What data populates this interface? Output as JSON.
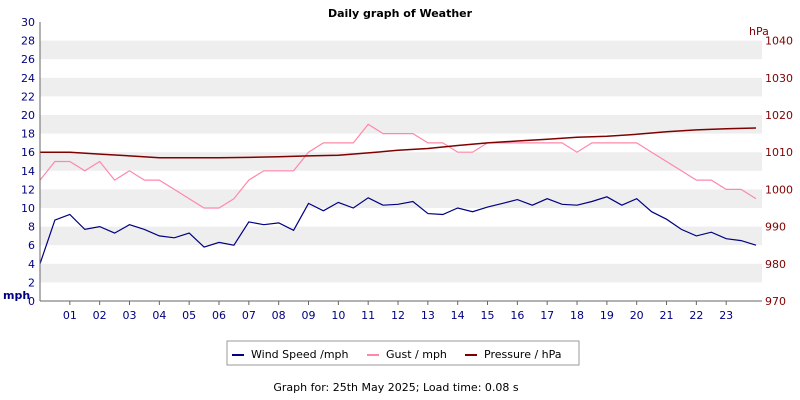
{
  "chart_data": {
    "type": "line",
    "title": "Daily graph of Weather",
    "left_axis": {
      "label": "mph",
      "ylim": [
        0,
        30
      ],
      "ticks": [
        0,
        2,
        4,
        6,
        8,
        10,
        12,
        14,
        16,
        18,
        20,
        22,
        24,
        26,
        28,
        30
      ]
    },
    "right_axis": {
      "label": "hPa",
      "ylim": [
        970,
        1045
      ],
      "ticks": [
        970,
        980,
        990,
        1000,
        1010,
        1020,
        1030,
        1040
      ]
    },
    "x_axis": {
      "unit": "hour",
      "xlim": [
        0,
        24.2
      ],
      "tick_labels": [
        "01",
        "02",
        "03",
        "04",
        "05",
        "06",
        "07",
        "08",
        "09",
        "10",
        "11",
        "12",
        "13",
        "14",
        "15",
        "16",
        "17",
        "18",
        "19",
        "20",
        "21",
        "22",
        "23"
      ]
    },
    "grid": "horizontal alternating bands",
    "legend_placement": "bottom-center",
    "series": [
      {
        "name": "Wind Speed /mph",
        "axis": "left",
        "color": "#000080",
        "x": [
          0,
          0.5,
          1,
          1.5,
          2,
          2.5,
          3,
          3.5,
          4,
          4.5,
          5,
          5.5,
          6,
          6.5,
          7,
          7.5,
          8,
          8.5,
          9,
          9.5,
          10,
          10.5,
          11,
          11.5,
          12,
          12.5,
          13,
          13.5,
          14,
          14.5,
          15,
          15.5,
          16,
          16.5,
          17,
          17.5,
          18,
          18.5,
          19,
          19.5,
          20,
          20.5,
          21,
          21.5,
          22,
          22.5,
          23,
          23.5,
          24
        ],
        "values": [
          4,
          8.7,
          9.3,
          7.7,
          8,
          7.3,
          8.2,
          7.7,
          7,
          6.8,
          7.3,
          5.8,
          6.3,
          6,
          8.5,
          8.2,
          8.4,
          7.6,
          10.5,
          9.7,
          10.6,
          10,
          11.1,
          10.3,
          10.4,
          10.7,
          9.4,
          9.3,
          10,
          9.6,
          10.1,
          10.5,
          10.9,
          10.3,
          11,
          10.4,
          10.3,
          10.7,
          11.2,
          10.3,
          11,
          9.6,
          8.8,
          7.7,
          7,
          7.4,
          6.7,
          6.5,
          6
        ]
      },
      {
        "name": "Gust / mph",
        "axis": "left",
        "color": "#ff88aa",
        "x": [
          0,
          0.5,
          1,
          1.5,
          2,
          2.5,
          3,
          3.5,
          4,
          4.5,
          5,
          5.5,
          6,
          6.5,
          7,
          7.5,
          8,
          8.5,
          9,
          9.5,
          10,
          10.5,
          11,
          11.5,
          12,
          12.5,
          13,
          13.5,
          14,
          14.5,
          15,
          15.5,
          16,
          16.5,
          17,
          17.5,
          18,
          18.5,
          19,
          19.5,
          20,
          20.5,
          21,
          21.5,
          22,
          22.5,
          23,
          23.5,
          24
        ],
        "values": [
          13,
          15,
          15,
          14,
          15,
          13,
          14,
          13,
          13,
          12,
          11,
          10,
          10,
          11,
          13,
          14,
          14,
          14,
          16,
          17,
          17,
          17,
          19,
          18,
          18,
          18,
          17,
          17,
          16,
          16,
          17,
          17,
          17,
          17,
          17,
          17,
          16,
          17,
          17,
          17,
          17,
          16,
          15,
          14,
          13,
          13,
          12,
          12,
          11
        ]
      },
      {
        "name": "Pressure / hPa",
        "axis": "right",
        "color": "#800000",
        "x": [
          0,
          1,
          2,
          3,
          4,
          5,
          6,
          7,
          8,
          9,
          10,
          11,
          12,
          13,
          14,
          15,
          16,
          17,
          18,
          19,
          20,
          21,
          22,
          23,
          24
        ],
        "values": [
          1010,
          1010,
          1009.5,
          1009,
          1008.5,
          1008.5,
          1008.5,
          1008.6,
          1008.8,
          1009,
          1009.2,
          1009.8,
          1010.5,
          1011,
          1011.8,
          1012.5,
          1013,
          1013.5,
          1014,
          1014.3,
          1014.8,
          1015.5,
          1016,
          1016.3,
          1016.5
        ]
      }
    ]
  },
  "footer": {
    "text": "Graph for: 25th May 2025; Load time: 0.08 s"
  }
}
